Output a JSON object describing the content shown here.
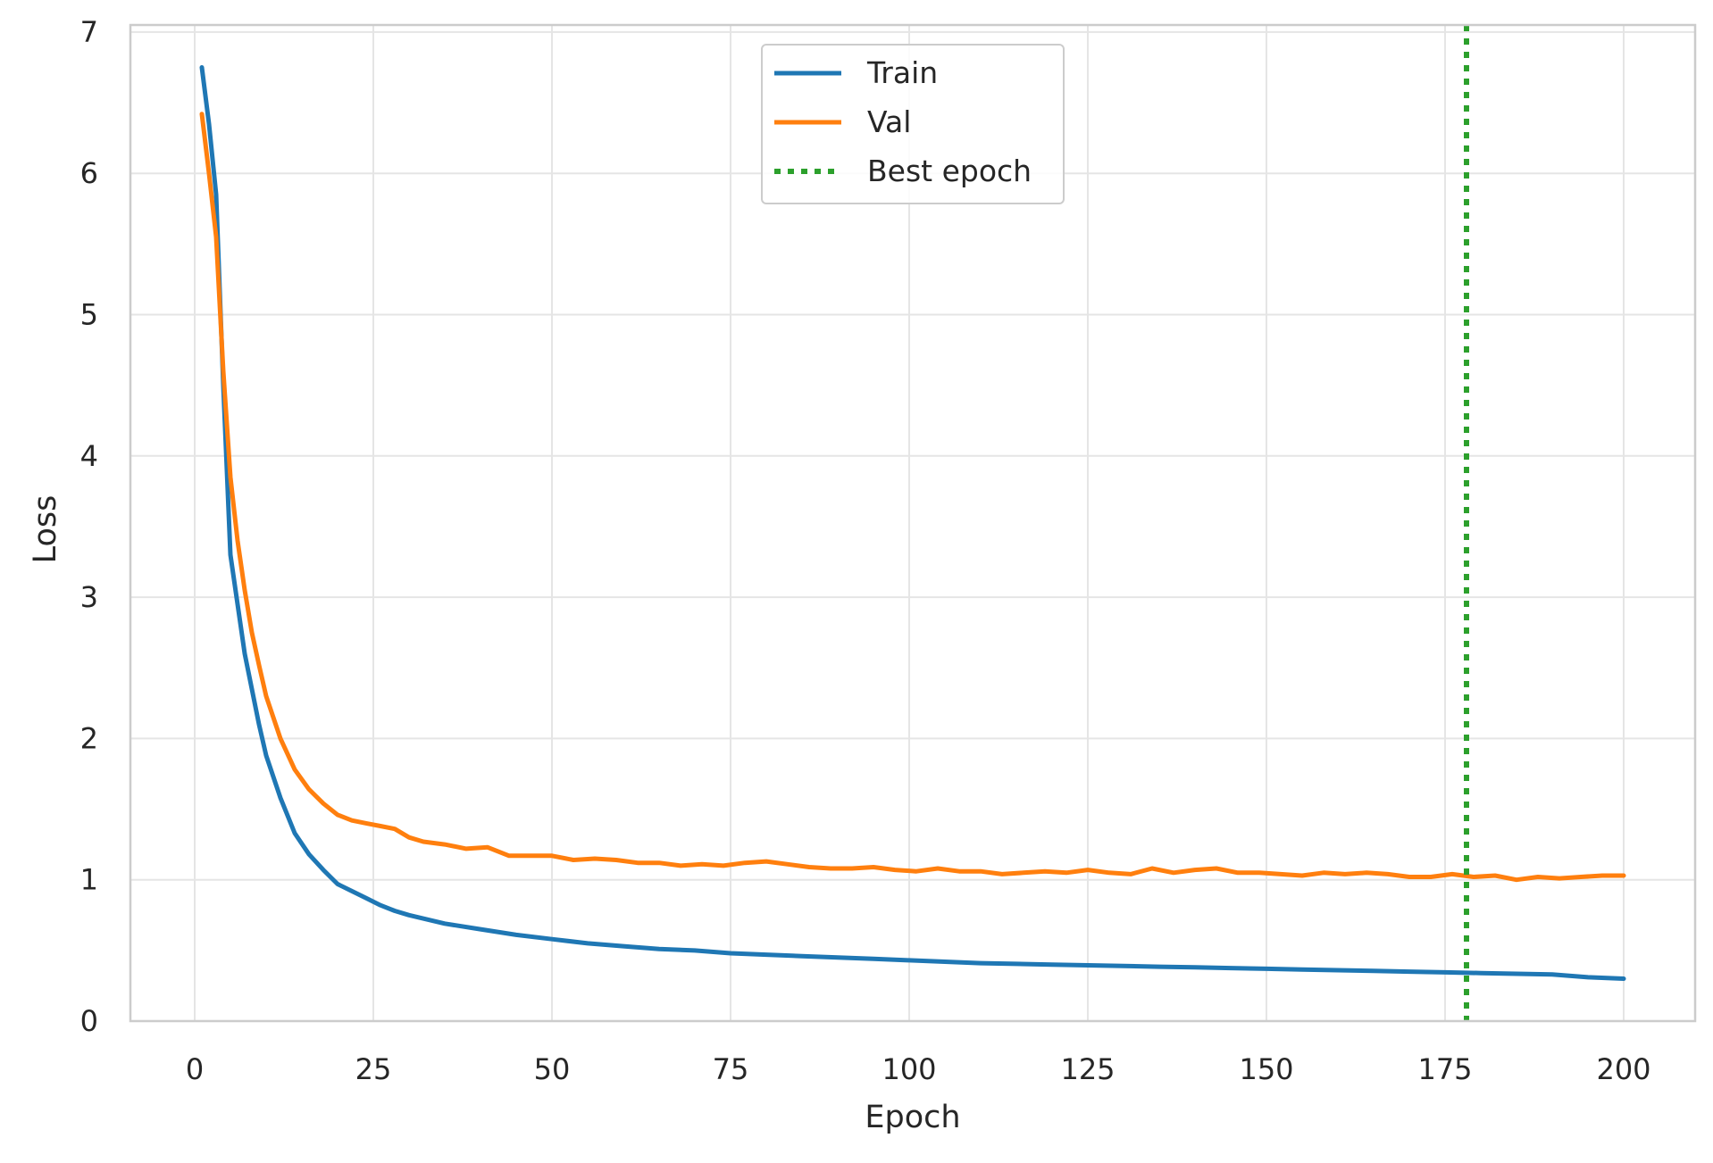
{
  "chart_data": {
    "type": "line",
    "title": "",
    "xlabel": "Epoch",
    "ylabel": "Loss",
    "xlim": [
      -9,
      210
    ],
    "ylim": [
      0,
      7.05
    ],
    "xticks": [
      0,
      25,
      50,
      75,
      100,
      125,
      150,
      175,
      200
    ],
    "yticks": [
      0,
      1,
      2,
      3,
      4,
      5,
      6,
      7
    ],
    "grid": true,
    "legend_position": "top-center",
    "best_epoch": 178,
    "series": [
      {
        "name": "Train",
        "color": "#1f77b4",
        "x": [
          1,
          2,
          3,
          4,
          5,
          6,
          7,
          8,
          9,
          10,
          12,
          14,
          16,
          18,
          20,
          22,
          24,
          26,
          28,
          30,
          35,
          40,
          45,
          50,
          55,
          60,
          65,
          70,
          75,
          80,
          85,
          90,
          95,
          100,
          105,
          110,
          115,
          120,
          125,
          130,
          135,
          140,
          145,
          150,
          155,
          160,
          165,
          170,
          175,
          180,
          185,
          190,
          195,
          200
        ],
        "y": [
          6.75,
          6.35,
          5.85,
          4.5,
          3.3,
          2.95,
          2.6,
          2.35,
          2.1,
          1.88,
          1.58,
          1.33,
          1.18,
          1.07,
          0.97,
          0.92,
          0.87,
          0.82,
          0.78,
          0.75,
          0.69,
          0.65,
          0.61,
          0.58,
          0.55,
          0.53,
          0.51,
          0.5,
          0.48,
          0.47,
          0.46,
          0.45,
          0.44,
          0.43,
          0.42,
          0.41,
          0.405,
          0.4,
          0.395,
          0.39,
          0.385,
          0.38,
          0.375,
          0.37,
          0.365,
          0.36,
          0.355,
          0.35,
          0.345,
          0.34,
          0.335,
          0.33,
          0.31,
          0.3
        ]
      },
      {
        "name": "Val",
        "color": "#ff7f0e",
        "x": [
          1,
          2,
          3,
          4,
          5,
          6,
          7,
          8,
          9,
          10,
          12,
          14,
          16,
          18,
          20,
          22,
          24,
          26,
          28,
          30,
          32,
          35,
          38,
          41,
          44,
          47,
          50,
          53,
          56,
          59,
          62,
          65,
          68,
          71,
          74,
          77,
          80,
          83,
          86,
          89,
          92,
          95,
          98,
          101,
          104,
          107,
          110,
          113,
          116,
          119,
          122,
          125,
          128,
          131,
          134,
          137,
          140,
          143,
          146,
          149,
          152,
          155,
          158,
          161,
          164,
          167,
          170,
          173,
          176,
          179,
          182,
          185,
          188,
          191,
          194,
          197,
          200
        ],
        "y": [
          6.42,
          6.0,
          5.55,
          4.6,
          3.85,
          3.4,
          3.05,
          2.75,
          2.52,
          2.3,
          2.0,
          1.78,
          1.64,
          1.54,
          1.46,
          1.42,
          1.4,
          1.38,
          1.36,
          1.3,
          1.27,
          1.25,
          1.22,
          1.23,
          1.17,
          1.17,
          1.17,
          1.14,
          1.15,
          1.14,
          1.12,
          1.12,
          1.1,
          1.11,
          1.1,
          1.12,
          1.13,
          1.11,
          1.09,
          1.08,
          1.08,
          1.09,
          1.07,
          1.06,
          1.08,
          1.06,
          1.06,
          1.04,
          1.05,
          1.06,
          1.05,
          1.07,
          1.05,
          1.04,
          1.08,
          1.05,
          1.07,
          1.08,
          1.05,
          1.05,
          1.04,
          1.03,
          1.05,
          1.04,
          1.05,
          1.04,
          1.02,
          1.02,
          1.04,
          1.02,
          1.03,
          1.0,
          1.02,
          1.01,
          1.02,
          1.03,
          1.03
        ]
      },
      {
        "name": "Best epoch",
        "color": "#2ca02c",
        "style": "dotted"
      }
    ]
  }
}
